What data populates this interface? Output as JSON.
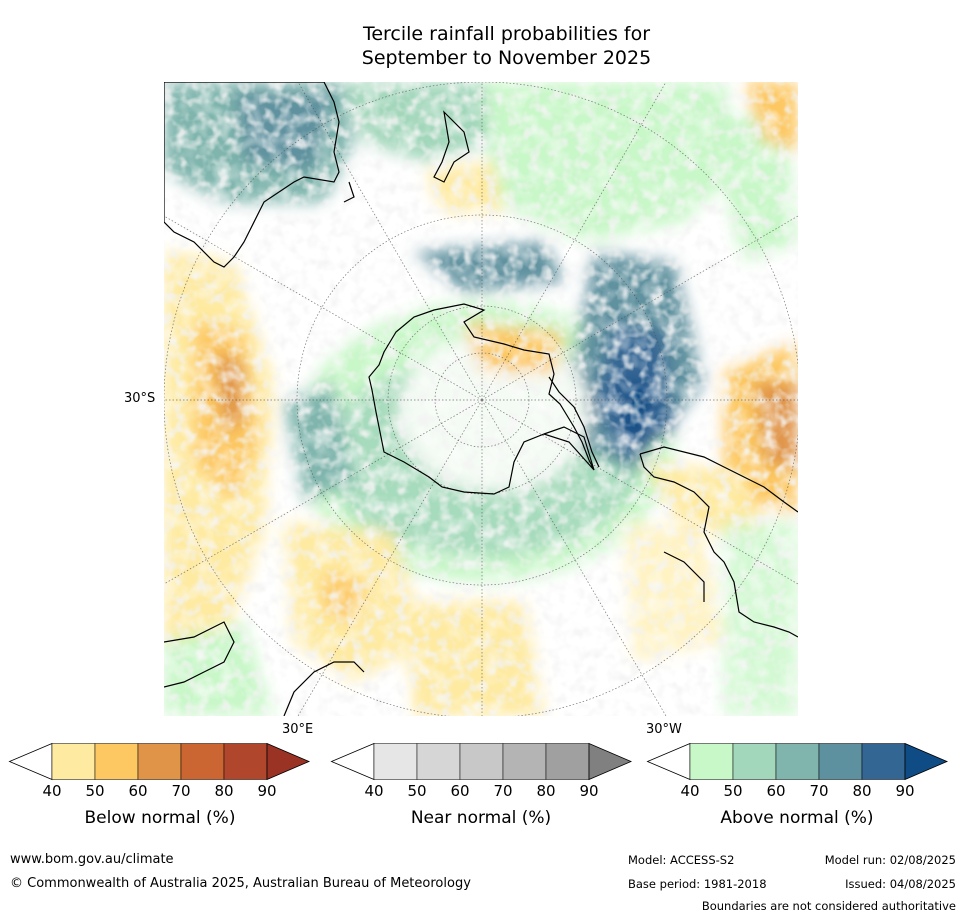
{
  "title": {
    "line1": "Tercile rainfall probabilities for",
    "line2": "September to November 2025"
  },
  "map": {
    "projection": "south-polar-stereographic",
    "lat_label": "30°S",
    "lon_labels": [
      "30°E",
      "30°W"
    ]
  },
  "colorbars": [
    {
      "name": "below",
      "label": "Below normal (%)",
      "ticks": [
        "40",
        "50",
        "60",
        "70",
        "80",
        "90"
      ],
      "colors": [
        "#ffffff",
        "#feeaa0",
        "#fdc862",
        "#e09448",
        "#cb6632",
        "#b0472c",
        "#9a3324"
      ]
    },
    {
      "name": "near",
      "label": "Near normal (%)",
      "ticks": [
        "40",
        "50",
        "60",
        "70",
        "80",
        "90"
      ],
      "colors": [
        "#ffffff",
        "#e6e6e6",
        "#d6d6d6",
        "#c8c8c8",
        "#b4b4b4",
        "#a0a0a0",
        "#808080"
      ]
    },
    {
      "name": "above",
      "label": "Above normal (%)",
      "ticks": [
        "40",
        "50",
        "60",
        "70",
        "80",
        "90"
      ],
      "colors": [
        "#ffffff",
        "#c8f7c8",
        "#a3d7bb",
        "#7fb5ad",
        "#5e919f",
        "#346694",
        "#0f4c85"
      ]
    }
  ],
  "footer": {
    "url": "www.bom.gov.au/climate",
    "copyright": "© Commonwealth of Australia 2025, Australian Bureau of Meteorology",
    "model": "Model: ACCESS-S2",
    "base_period": "Base period: 1981-2018",
    "model_run": "Model run: 02/08/2025",
    "issued": "Issued: 04/08/2025",
    "disclaimer": "Boundaries are not considered authoritative"
  }
}
